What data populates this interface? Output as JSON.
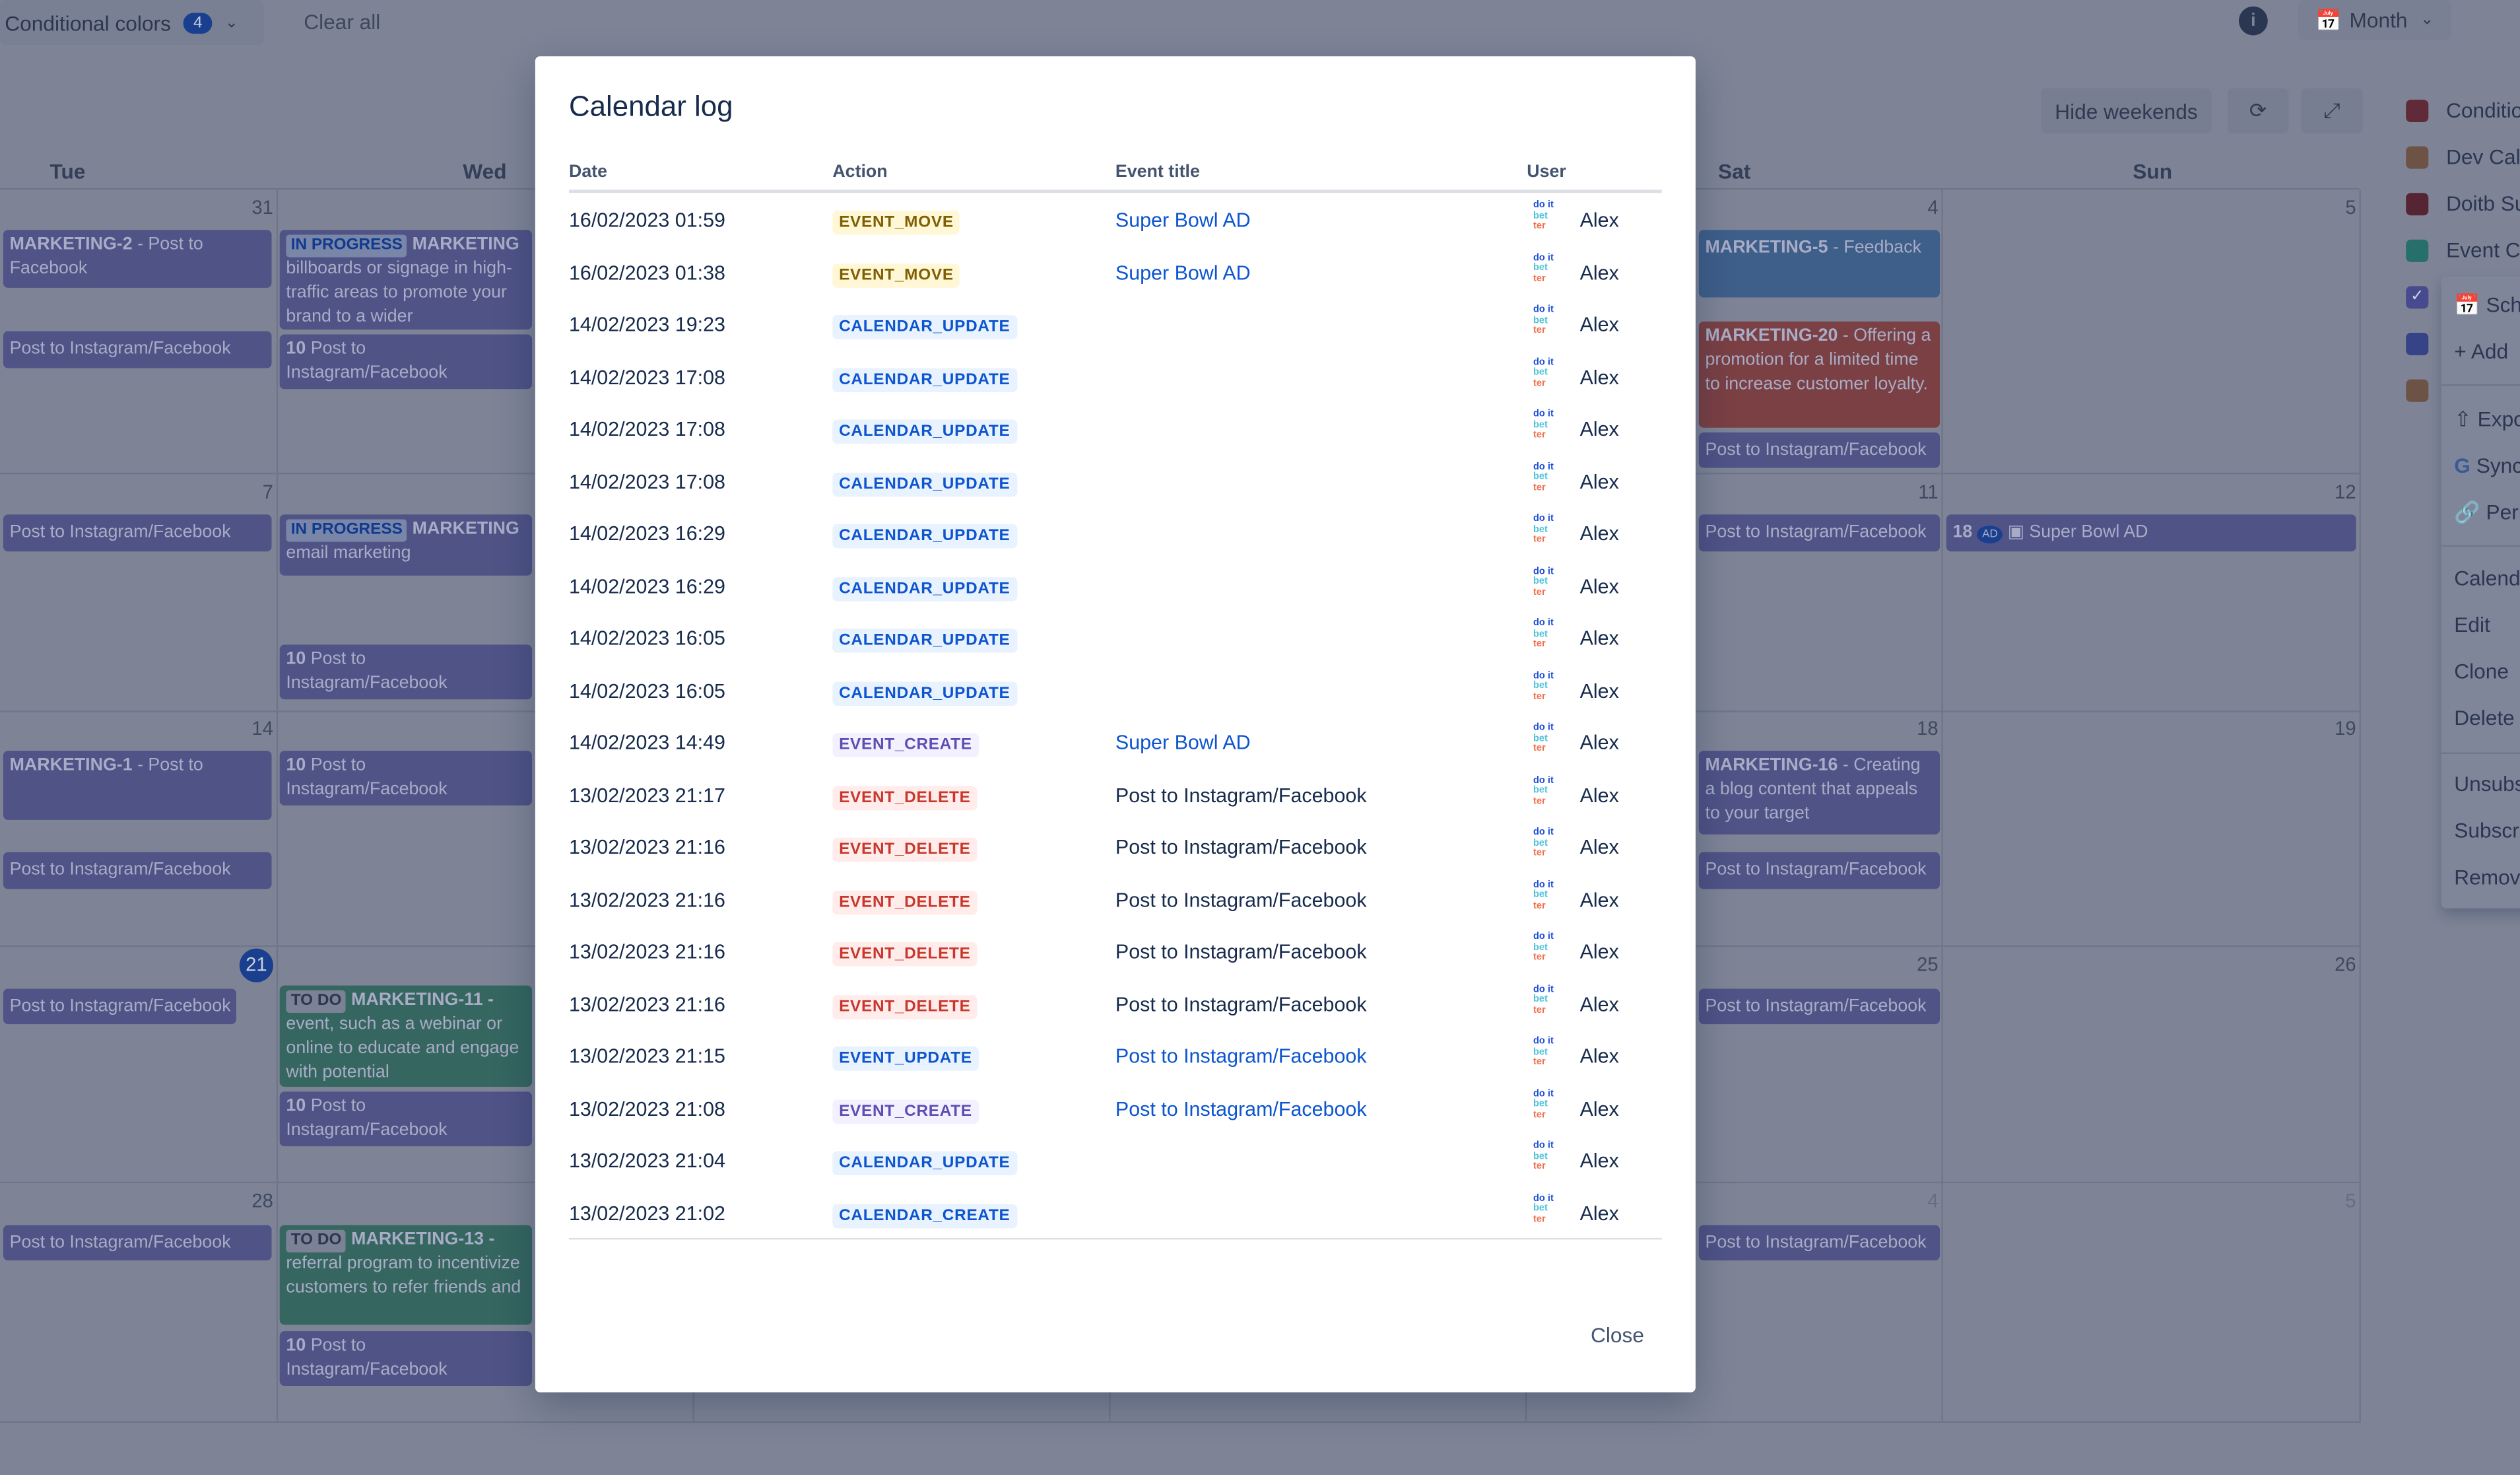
{
  "toolbar": {
    "conditional_colors": "Conditional colors",
    "conditional_count": "4",
    "clear_all": "Clear all",
    "view": "Month",
    "hide_weekends": "Hide weekends"
  },
  "days": [
    "Tue",
    "Wed",
    "Sat",
    "Sun"
  ],
  "dates": {
    "w1": [
      "31",
      "4",
      "5"
    ],
    "w2": [
      "7",
      "11",
      "12"
    ],
    "w3": [
      "14",
      "18",
      "19"
    ],
    "w4": [
      "21",
      "25",
      "26"
    ],
    "w5": [
      "28",
      "4",
      "5"
    ]
  },
  "events": {
    "e1": "MARKETING-2",
    "e1b": " - Post to Facebook",
    "ig": "Post to Instagram/Facebook",
    "inprog": "IN PROGRESS",
    "mk": "MARKETING",
    "e2": "billboards or signage in high-traffic areas to promote your brand to a wider",
    "ten": "10",
    "e3": "MARKETING-5",
    "e3b": " - Feedback",
    "e4": "MARKETING-20",
    "e4b": " - Offering a promotion for a limited time to increase customer loyalty.",
    "e5": "email marketing",
    "e6n": "18",
    "e6": "Super Bowl AD",
    "e6av": "AD",
    "e7": "MARKETING-1",
    "e7b": " - Post to",
    "e8": "MARKETING-16",
    "e8b": " - Creating a blog content that appeals to your target",
    "todo": "TO DO",
    "e9": "MARKETING-11 -",
    "e9b": "event, such as a webinar or online to educate and engage with potential",
    "e10": "MARKETING-13 -",
    "e10b": "referral program to incentivize customers to refer friends and"
  },
  "calendars": [
    {
      "label": "Conditional colors",
      "color": "#c9372c"
    },
    {
      "label": "Dev Calendar",
      "color": "#e2904a"
    },
    {
      "label": "Doitb Support",
      "color": "#ae2e24"
    },
    {
      "label": "Event Calendar",
      "color": "#4bce97"
    },
    {
      "label": "",
      "color": "#8f7ee7",
      "checked": true
    },
    {
      "label": "",
      "color": "#6e6fd8"
    },
    {
      "label": "",
      "color": "#e2904a"
    }
  ],
  "menu": [
    "Schedule",
    "Add",
    "Export",
    "Sync",
    "Permalink",
    "Calendar",
    "Edit",
    "Clone",
    "Delete",
    "Unsubscribe",
    "Subscribe",
    "Remove"
  ],
  "modal": {
    "title": "Calendar log",
    "headers": {
      "date": "Date",
      "action": "Action",
      "event": "Event title",
      "user": "User"
    },
    "close": "Close",
    "user_avatar": "do it bet ter",
    "log": [
      {
        "date": "16/02/2023 01:59",
        "action": "EVENT_MOVE",
        "title": "Super Bowl AD",
        "link": true,
        "user": "Alex"
      },
      {
        "date": "16/02/2023 01:38",
        "action": "EVENT_MOVE",
        "title": "Super Bowl AD",
        "link": true,
        "user": "Alex"
      },
      {
        "date": "14/02/2023 19:23",
        "action": "CALENDAR_UPDATE",
        "title": "",
        "user": "Alex"
      },
      {
        "date": "14/02/2023 17:08",
        "action": "CALENDAR_UPDATE",
        "title": "",
        "user": "Alex"
      },
      {
        "date": "14/02/2023 17:08",
        "action": "CALENDAR_UPDATE",
        "title": "",
        "user": "Alex"
      },
      {
        "date": "14/02/2023 17:08",
        "action": "CALENDAR_UPDATE",
        "title": "",
        "user": "Alex"
      },
      {
        "date": "14/02/2023 16:29",
        "action": "CALENDAR_UPDATE",
        "title": "",
        "user": "Alex"
      },
      {
        "date": "14/02/2023 16:29",
        "action": "CALENDAR_UPDATE",
        "title": "",
        "user": "Alex"
      },
      {
        "date": "14/02/2023 16:05",
        "action": "CALENDAR_UPDATE",
        "title": "",
        "user": "Alex"
      },
      {
        "date": "14/02/2023 16:05",
        "action": "CALENDAR_UPDATE",
        "title": "",
        "user": "Alex"
      },
      {
        "date": "14/02/2023 14:49",
        "action": "EVENT_CREATE",
        "title": "Super Bowl AD",
        "link": true,
        "user": "Alex"
      },
      {
        "date": "13/02/2023 21:17",
        "action": "EVENT_DELETE",
        "title": "Post to Instagram/Facebook",
        "link": false,
        "user": "Alex"
      },
      {
        "date": "13/02/2023 21:16",
        "action": "EVENT_DELETE",
        "title": "Post to Instagram/Facebook",
        "link": false,
        "user": "Alex"
      },
      {
        "date": "13/02/2023 21:16",
        "action": "EVENT_DELETE",
        "title": "Post to Instagram/Facebook",
        "link": false,
        "user": "Alex"
      },
      {
        "date": "13/02/2023 21:16",
        "action": "EVENT_DELETE",
        "title": "Post to Instagram/Facebook",
        "link": false,
        "user": "Alex"
      },
      {
        "date": "13/02/2023 21:16",
        "action": "EVENT_DELETE",
        "title": "Post to Instagram/Facebook",
        "link": false,
        "user": "Alex"
      },
      {
        "date": "13/02/2023 21:15",
        "action": "EVENT_UPDATE",
        "title": "Post to Instagram/Facebook",
        "link": true,
        "user": "Alex"
      },
      {
        "date": "13/02/2023 21:08",
        "action": "EVENT_CREATE",
        "title": "Post to Instagram/Facebook",
        "link": true,
        "user": "Alex"
      },
      {
        "date": "13/02/2023 21:04",
        "action": "CALENDAR_UPDATE",
        "title": "",
        "user": "Alex"
      },
      {
        "date": "13/02/2023 21:02",
        "action": "CALENDAR_CREATE",
        "title": "",
        "user": "Alex"
      }
    ]
  },
  "badge_colors": {
    "MOVE": {
      "bg": "#fff7d6",
      "fg": "#7f5f01"
    },
    "CAL": {
      "bg": "#e9f2ff",
      "fg": "#0c55cf"
    },
    "EVENT_UPDATE": {
      "bg": "#e9f2ff",
      "fg": "#0c55cf"
    },
    "EVENT_CREATE": {
      "bg": "#f3f0ff",
      "fg": "#5e4db2"
    },
    "EVENT_DELETE": {
      "bg": "#ffeceb",
      "fg": "#c9372c"
    }
  }
}
